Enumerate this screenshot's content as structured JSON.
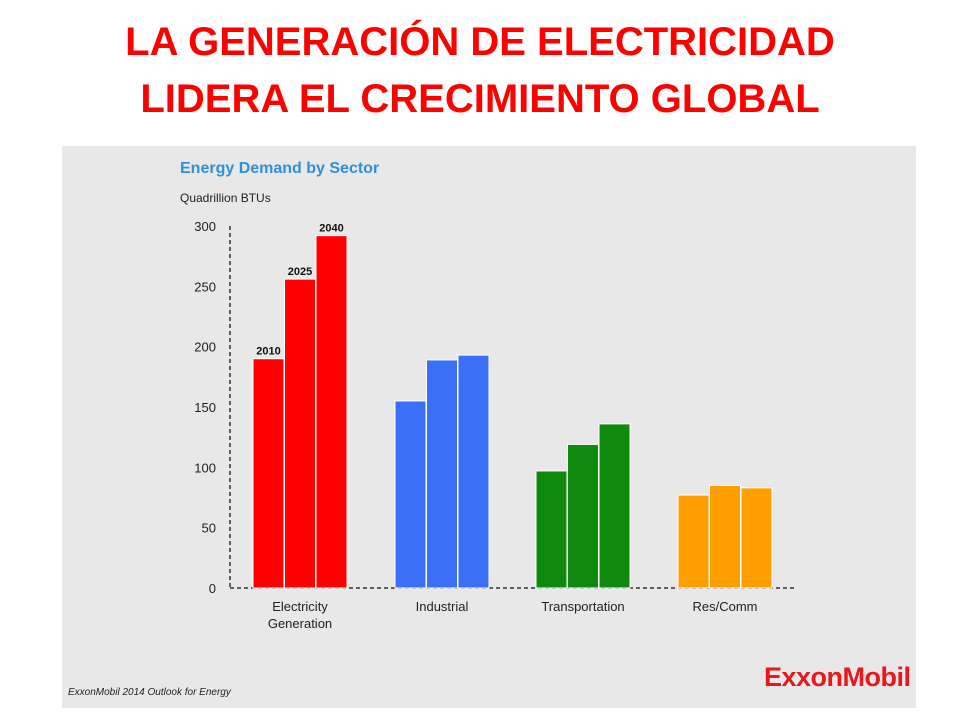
{
  "slide": {
    "title_line1": "LA GENERACIÓN DE ELECTRICIDAD",
    "title_line2": "LIDERA EL CRECIMIENTO GLOBAL"
  },
  "source_note": "ExxonMobil 2014 Outlook for Energy",
  "logo_text": "ExxonMobil",
  "chart_data": {
    "type": "bar",
    "title": "Energy Demand by Sector",
    "ylabel": "Quadrillion BTUs",
    "xlabel": "",
    "ylim": [
      0,
      300
    ],
    "yticks": [
      0,
      50,
      100,
      150,
      200,
      250,
      300
    ],
    "grid": false,
    "categories": [
      "Electricity Generation",
      "Industrial",
      "Transportation",
      "Res/Comm"
    ],
    "category_lines": [
      [
        "Electricity",
        "Generation"
      ],
      [
        "Industrial"
      ],
      [
        "Transportation"
      ],
      [
        "Res/Comm"
      ]
    ],
    "series": [
      {
        "name": "2010",
        "values": [
          190,
          155,
          97,
          77
        ]
      },
      {
        "name": "2025",
        "values": [
          256,
          189,
          119,
          85
        ]
      },
      {
        "name": "2040",
        "values": [
          292,
          193,
          136,
          83
        ]
      }
    ],
    "series_labels_on": "Electricity Generation",
    "colors": [
      "#ff0000",
      "#3a6ff7",
      "#0f8a0f",
      "#ff9e00"
    ]
  }
}
